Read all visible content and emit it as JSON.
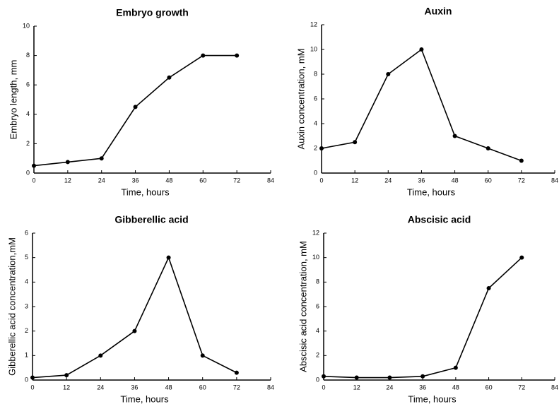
{
  "chart_data": [
    {
      "type": "line",
      "title": "Embryo growth",
      "xlabel": "Time, hours",
      "ylabel": "Embryo length, mm",
      "x": [
        0,
        12,
        24,
        36,
        48,
        60,
        72
      ],
      "values": [
        0.5,
        0.75,
        1,
        4.5,
        6.5,
        8,
        8
      ],
      "color": "#000000",
      "xlim": [
        0,
        84
      ],
      "ylim": [
        0,
        10
      ],
      "xticks": [
        0,
        12,
        24,
        36,
        48,
        60,
        72,
        84
      ],
      "yticks": [
        0,
        2,
        4,
        6,
        8,
        10
      ]
    },
    {
      "type": "line",
      "title": "Auxin",
      "xlabel": "Time, hours",
      "ylabel": "Auxin concentration, mM",
      "x": [
        0,
        12,
        24,
        36,
        48,
        60,
        72
      ],
      "values": [
        2,
        2.5,
        8,
        10,
        3,
        2,
        1
      ],
      "color": "#000000",
      "xlim": [
        0,
        84
      ],
      "ylim": [
        0,
        12
      ],
      "xticks": [
        0,
        12,
        24,
        36,
        48,
        60,
        72,
        84
      ],
      "yticks": [
        0,
        2,
        4,
        6,
        8,
        10,
        12
      ]
    },
    {
      "type": "line",
      "title": "Gibberellic acid",
      "xlabel": "Time, hours",
      "ylabel": "Gibberellic acid concentration,mM",
      "x": [
        0,
        12,
        24,
        36,
        48,
        60,
        72
      ],
      "values": [
        0.1,
        0.2,
        1,
        2,
        5,
        1,
        0.3
      ],
      "color": "#000000",
      "xlim": [
        0,
        84
      ],
      "ylim": [
        0,
        6
      ],
      "xticks": [
        0,
        12,
        24,
        36,
        48,
        60,
        72,
        84
      ],
      "yticks": [
        0,
        1,
        2,
        3,
        4,
        5,
        6
      ]
    },
    {
      "type": "line",
      "title": "Abscisic acid",
      "xlabel": "Time, hours",
      "ylabel": "Abscisic acid concentration, mM",
      "x": [
        0,
        12,
        24,
        36,
        48,
        60,
        72
      ],
      "values": [
        0.3,
        0.2,
        0.2,
        0.3,
        1,
        7.5,
        10
      ],
      "color": "#000000",
      "xlim": [
        0,
        84
      ],
      "ylim": [
        0,
        12
      ],
      "xticks": [
        0,
        12,
        24,
        36,
        48,
        60,
        72,
        84
      ],
      "yticks": [
        0,
        2,
        4,
        6,
        8,
        10,
        12
      ]
    }
  ]
}
